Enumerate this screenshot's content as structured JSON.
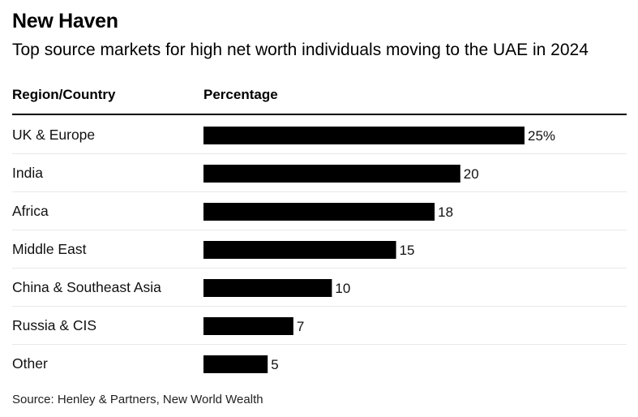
{
  "chart_data": {
    "type": "bar",
    "orientation": "horizontal",
    "title": "New Haven",
    "subtitle": "Top source markets for high net worth individuals moving to the UAE in 2024",
    "category_header": "Region/Country",
    "value_header": "Percentage",
    "categories": [
      "UK & Europe",
      "India",
      "Africa",
      "Middle East",
      "China & Southeast Asia",
      "Russia & CIS",
      "Other"
    ],
    "values": [
      25,
      20,
      18,
      15,
      10,
      7,
      5
    ],
    "value_labels": [
      "25%",
      "20",
      "18",
      "15",
      "10",
      "7",
      "5"
    ],
    "xlim": [
      0,
      25
    ],
    "grid": false,
    "source": "Source: Henley & Partners, New World Wealth"
  },
  "colors": {
    "bar": "#000000",
    "divider": "#e8e8e8",
    "text": "#111111"
  }
}
